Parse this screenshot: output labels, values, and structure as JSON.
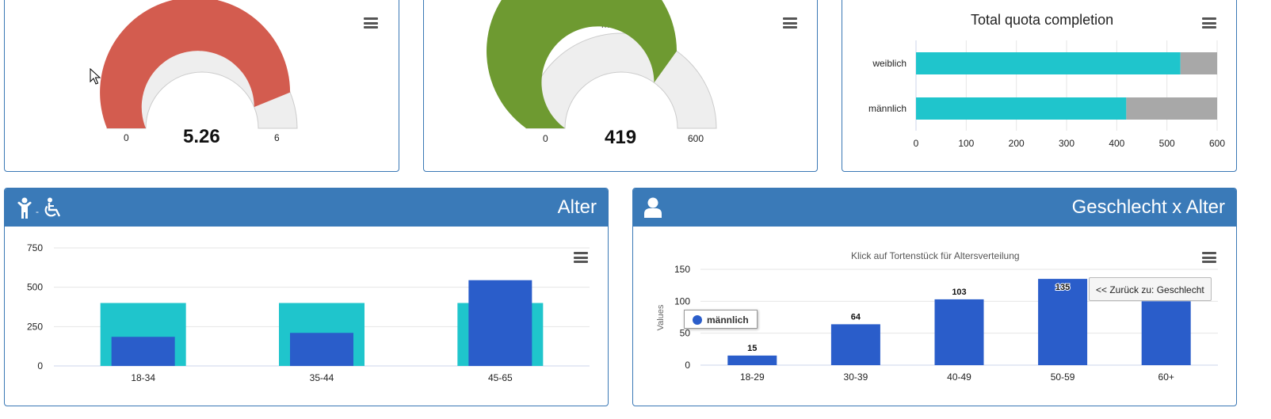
{
  "gauge1": {
    "value_text": "5.26",
    "value": 5.26,
    "min_label": "0",
    "max_label": "6",
    "min": 0,
    "max": 6,
    "color": "#d35c4f"
  },
  "gauge2": {
    "title": "männlich",
    "value_text": "419",
    "value": 419,
    "min_label": "0",
    "max_label": "600",
    "min": 0,
    "max": 600,
    "color": "#6e9a31"
  },
  "quota": {
    "title": "Total quota completion",
    "categories": [
      "weiblich",
      "männlich"
    ],
    "completed": [
      527,
      419
    ],
    "total": [
      600,
      600
    ],
    "ticks": [
      "0",
      "100",
      "200",
      "300",
      "400",
      "500",
      "600"
    ],
    "completed_color": "#1fc5cc",
    "remaining_color": "#a8a8a8"
  },
  "alter": {
    "header_title": "Alter",
    "header_icons": [
      "child-icon",
      "wheelchair-icon"
    ],
    "header_sep": "-",
    "y_ticks": [
      "750",
      "500",
      "250",
      "0"
    ],
    "categories": [
      "18-34",
      "35-44",
      "45-65"
    ],
    "target": [
      400,
      400,
      400
    ],
    "actual": [
      185,
      210,
      545
    ],
    "target_color": "#1fc5cc",
    "actual_color": "#2a5dca"
  },
  "gxa": {
    "header_title": "Geschlecht x Alter",
    "header_icon": "user-icon",
    "subtitle": "Klick auf Tortenstück für Altersverteilung",
    "ylabel": "Values",
    "y_ticks": [
      "150",
      "100",
      "50",
      "0"
    ],
    "legend": "männlich",
    "back_button": "<< Zurück zu: Geschlecht",
    "bar_color": "#2a5dca"
  },
  "chart_data": [
    {
      "type": "bar",
      "title": "Total quota completion",
      "categories": [
        "weiblich",
        "männlich"
      ],
      "series": [
        {
          "values": [
            527,
            419
          ]
        },
        {
          "values": [
            73,
            181
          ]
        }
      ],
      "xlim": [
        0,
        600
      ]
    },
    {
      "type": "bar",
      "title": "Alter",
      "categories": [
        "18-34",
        "35-44",
        "45-65"
      ],
      "series": [
        {
          "values": [
            400,
            400,
            400
          ]
        },
        {
          "values": [
            185,
            210,
            545
          ]
        }
      ],
      "ylim": [
        0,
        750
      ]
    },
    {
      "type": "bar",
      "title": "Klick auf Tortenstück für Altersverteilung",
      "ylabel": "Values",
      "categories": [
        "18-29",
        "30-39",
        "40-49",
        "50-59",
        "60+"
      ],
      "series": [
        {
          "name": "männlich",
          "values": [
            15,
            64,
            103,
            135,
            100
          ],
          "labels": [
            "15",
            "64",
            "103",
            "135",
            ""
          ]
        }
      ],
      "ylim": [
        0,
        150
      ]
    }
  ]
}
